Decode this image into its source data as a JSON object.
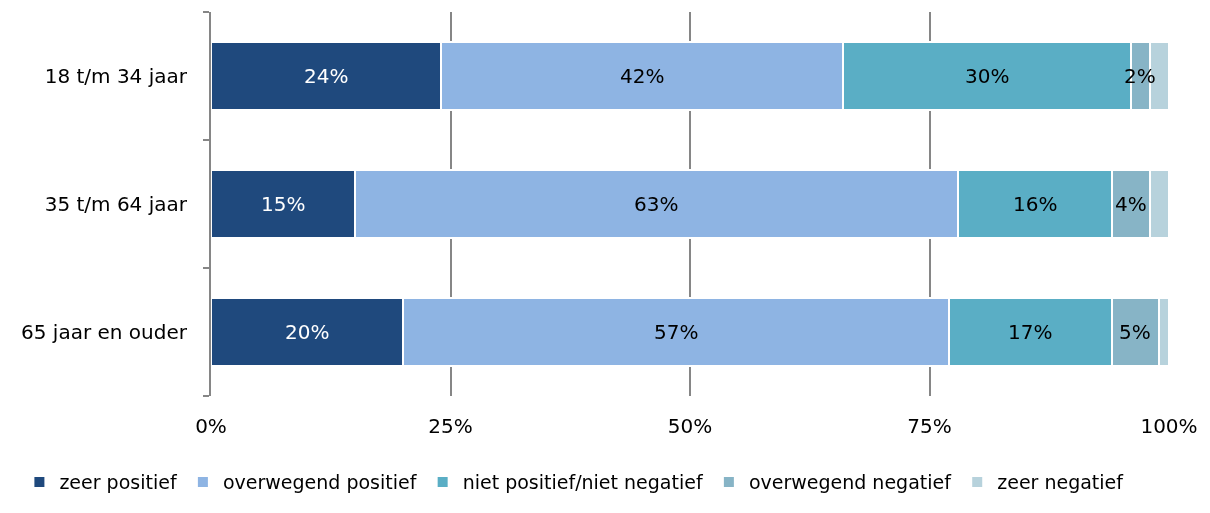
{
  "chart_data": {
    "type": "bar",
    "orientation": "horizontal",
    "stacked": true,
    "categories": [
      "18 t/m 34 jaar",
      "35 t/m 64 jaar",
      "65 jaar en ouder"
    ],
    "series": [
      {
        "name": "zeer positief",
        "color": "#1f497d",
        "values": [
          24,
          15,
          20
        ],
        "value_labels": [
          "24%",
          "15%",
          "20%"
        ]
      },
      {
        "name": "overwegend positief",
        "color": "#8eb4e3",
        "values": [
          42,
          63,
          57
        ],
        "value_labels": [
          "42%",
          "63%",
          "57%"
        ]
      },
      {
        "name": "niet positief/niet negatief",
        "color": "#5aaec5",
        "values": [
          30,
          16,
          17
        ],
        "value_labels": [
          "30%",
          "16%",
          "17%"
        ]
      },
      {
        "name": "overwegend negatief",
        "color": "#87b4c6",
        "values": [
          2,
          4,
          5
        ],
        "value_labels": [
          "2%",
          "4%",
          "5%"
        ]
      },
      {
        "name": "zeer negatief",
        "color": "#b7d2dc",
        "values": [
          2,
          2,
          1
        ]
      }
    ],
    "xlim": [
      0,
      100
    ],
    "xticks": [
      {
        "value": 0,
        "label": "0%"
      },
      {
        "value": 25,
        "label": "25%"
      },
      {
        "value": 50,
        "label": "50%"
      },
      {
        "value": 75,
        "label": "75%"
      },
      {
        "value": 100,
        "label": "100%"
      }
    ],
    "grid": "x",
    "legend": "bottom"
  }
}
